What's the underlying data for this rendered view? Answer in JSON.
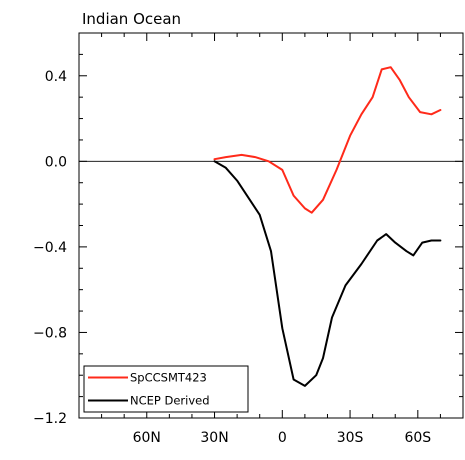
{
  "chart_data": {
    "type": "line",
    "title": "Indian Ocean",
    "xlabel": "",
    "ylabel": "",
    "x_ticks": [
      {
        "value": 60,
        "label": "60N"
      },
      {
        "value": 30,
        "label": "30N"
      },
      {
        "value": 0,
        "label": "0"
      },
      {
        "value": -30,
        "label": "30S"
      },
      {
        "value": -60,
        "label": "60S"
      }
    ],
    "y_ticks": [
      {
        "value": 0.4,
        "label": "0.4"
      },
      {
        "value": 0.0,
        "label": "0.0"
      },
      {
        "value": -0.4,
        "label": "−0.4"
      },
      {
        "value": -0.8,
        "label": "−0.8"
      },
      {
        "value": -1.2,
        "label": "−1.2"
      }
    ],
    "xlim": [
      90,
      -80
    ],
    "ylim": [
      -1.2,
      0.6
    ],
    "zero_line": true,
    "legend_position": "bottom-left",
    "series": [
      {
        "name": "SpCCSMT423",
        "color": "#ff2a1a",
        "x": [
          30,
          25,
          18,
          12,
          6,
          0,
          -5,
          -10,
          -13,
          -18,
          -24,
          -30,
          -35,
          -40,
          -44,
          -48,
          -52,
          -56,
          -61,
          -66,
          -70
        ],
        "y": [
          0.01,
          0.02,
          0.03,
          0.02,
          0.0,
          -0.04,
          -0.16,
          -0.22,
          -0.24,
          -0.18,
          -0.04,
          0.12,
          0.22,
          0.3,
          0.43,
          0.44,
          0.38,
          0.3,
          0.23,
          0.22,
          0.24
        ]
      },
      {
        "name": "NCEP Derived",
        "color": "#000000",
        "x": [
          30,
          25,
          20,
          15,
          10,
          5,
          0,
          -5,
          -10,
          -15,
          -18,
          -22,
          -28,
          -35,
          -42,
          -46,
          -50,
          -55,
          -58,
          -62,
          -66,
          -70
        ],
        "y": [
          0.0,
          -0.03,
          -0.09,
          -0.17,
          -0.25,
          -0.42,
          -0.78,
          -1.02,
          -1.05,
          -1.0,
          -0.92,
          -0.73,
          -0.58,
          -0.48,
          -0.37,
          -0.34,
          -0.38,
          -0.42,
          -0.44,
          -0.38,
          -0.37,
          -0.37
        ]
      }
    ]
  }
}
